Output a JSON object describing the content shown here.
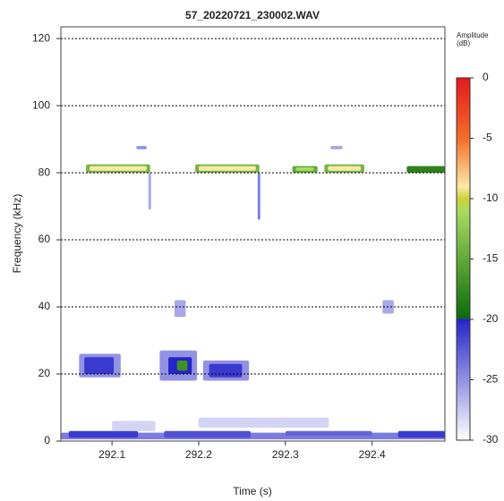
{
  "chart_data": {
    "type": "spectrogram",
    "title": "57_20220721_230002.WAV",
    "x_label": "Time (s)",
    "y_label": "Frequency (kHz)",
    "colorbar_title": [
      "Amplitude",
      "(dB)"
    ],
    "xlim": [
      292.041,
      292.484
    ],
    "xticks": [
      292.1,
      292.2,
      292.3,
      292.4
    ],
    "ylim": [
      0,
      123.5
    ],
    "yticks": [
      0,
      20,
      40,
      60,
      80,
      100,
      120
    ],
    "grid": true,
    "clim": [
      -30,
      0
    ],
    "cticks": [
      0,
      -5,
      -10,
      -15,
      -20,
      -25,
      -30
    ],
    "colorscale": [
      {
        "value": 0,
        "color": "#e31a1c"
      },
      {
        "value": -5,
        "color": "#f46d2a"
      },
      {
        "value": -9,
        "color": "#fbe8a6"
      },
      {
        "value": -10,
        "color": "#cfcf38"
      },
      {
        "value": -11,
        "color": "#a8dc60"
      },
      {
        "value": -19.9,
        "color": "#0b6b0b"
      },
      {
        "value": -20,
        "color": "#2424c8"
      },
      {
        "value": -30,
        "color": "#ffffff"
      }
    ],
    "cells": [
      {
        "t0": 292.041,
        "t1": 292.484,
        "f0": 0.5,
        "f1": 2.5,
        "db": -24
      },
      {
        "t0": 292.05,
        "t1": 292.13,
        "f0": 1,
        "f1": 3,
        "db": -21
      },
      {
        "t0": 292.16,
        "t1": 292.26,
        "f0": 1,
        "f1": 3,
        "db": -22
      },
      {
        "t0": 292.3,
        "t1": 292.4,
        "f0": 1.5,
        "f1": 3,
        "db": -23
      },
      {
        "t0": 292.43,
        "t1": 292.484,
        "f0": 1,
        "f1": 3,
        "db": -21
      },
      {
        "t0": 292.1,
        "t1": 292.15,
        "f0": 3,
        "f1": 6,
        "db": -28
      },
      {
        "t0": 292.2,
        "t1": 292.35,
        "f0": 4,
        "f1": 7,
        "db": -28
      },
      {
        "t0": 292.062,
        "t1": 292.11,
        "f0": 19,
        "f1": 26,
        "db": -25
      },
      {
        "t0": 292.068,
        "t1": 292.102,
        "f0": 20,
        "f1": 25,
        "db": -21
      },
      {
        "t0": 292.155,
        "t1": 292.198,
        "f0": 18,
        "f1": 27,
        "db": -25
      },
      {
        "t0": 292.165,
        "t1": 292.192,
        "f0": 20,
        "f1": 25,
        "db": -20
      },
      {
        "t0": 292.175,
        "t1": 292.187,
        "f0": 21,
        "f1": 24,
        "db": -17
      },
      {
        "t0": 292.205,
        "t1": 292.258,
        "f0": 18,
        "f1": 24,
        "db": -25
      },
      {
        "t0": 292.212,
        "t1": 292.25,
        "f0": 19,
        "f1": 23,
        "db": -21
      },
      {
        "t0": 292.172,
        "t1": 292.185,
        "f0": 37,
        "f1": 42,
        "db": -26
      },
      {
        "t0": 292.412,
        "t1": 292.425,
        "f0": 38,
        "f1": 42,
        "db": -26
      },
      {
        "t0": 292.07,
        "t1": 292.144,
        "f0": 80,
        "f1": 82.5,
        "db": -14
      },
      {
        "t0": 292.074,
        "t1": 292.14,
        "f0": 80.6,
        "f1": 82,
        "db": -9
      },
      {
        "t0": 292.196,
        "t1": 292.27,
        "f0": 80,
        "f1": 82.5,
        "db": -14
      },
      {
        "t0": 292.2,
        "t1": 292.266,
        "f0": 80.6,
        "f1": 82,
        "db": -9
      },
      {
        "t0": 292.308,
        "t1": 292.337,
        "f0": 80,
        "f1": 82,
        "db": -15
      },
      {
        "t0": 292.312,
        "t1": 292.333,
        "f0": 80.6,
        "f1": 81.6,
        "db": -11
      },
      {
        "t0": 292.345,
        "t1": 292.391,
        "f0": 80,
        "f1": 82.5,
        "db": -14
      },
      {
        "t0": 292.349,
        "t1": 292.387,
        "f0": 80.6,
        "f1": 82,
        "db": -9
      },
      {
        "t0": 292.44,
        "t1": 292.484,
        "f0": 80,
        "f1": 82,
        "db": -18
      },
      {
        "t0": 292.268,
        "t1": 292.271,
        "f0": 66,
        "f1": 80,
        "db": -24
      },
      {
        "t0": 292.142,
        "t1": 292.145,
        "f0": 69,
        "f1": 80,
        "db": -26
      },
      {
        "t0": 292.128,
        "t1": 292.14,
        "f0": 87,
        "f1": 88,
        "db": -25
      },
      {
        "t0": 292.352,
        "t1": 292.366,
        "f0": 87,
        "f1": 88,
        "db": -26
      }
    ]
  }
}
